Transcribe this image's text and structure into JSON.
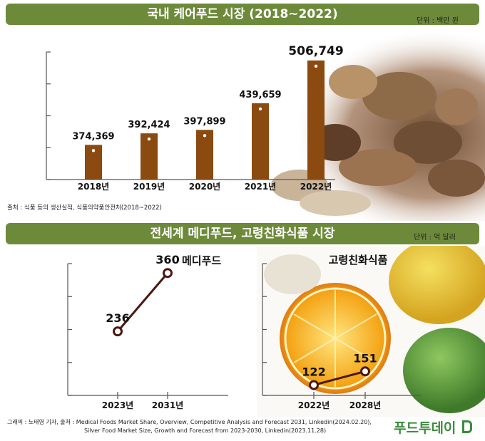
{
  "top_chart": {
    "title": "국내 케어푸드 시장 (2018~2022)",
    "unit": "단위 : 백만 원",
    "source": "출처 : 식품 등의 생산실적, 식품의약품안전처(2018~2022)"
  },
  "bottom_chart": {
    "title": "전세계 메디푸드, 고령친화식품 시장",
    "unit": "단위 : 억 달러",
    "source_line1": "그래픽 : 노태영 기자, 출처 : Medical Foods Market Share, Overview, Competitive Analysis and Forecast 2031, Linkedin(2024.02.20),",
    "source_line2": "Silver Food Market Size, Growth and Forecast from 2023-2030, Linkedin(2023.11.28)"
  },
  "logo": "푸드투데이",
  "colors": {
    "banner": "#6d8a3a",
    "bar": "#8a4a10",
    "line": "#4a1810",
    "axis": "#555555"
  },
  "chart_data": [
    {
      "type": "bar",
      "title": "국내 케어푸드 시장 (2018~2022)",
      "categories": [
        "2018년",
        "2019년",
        "2020년",
        "2021년",
        "2022년"
      ],
      "values": [
        374369,
        392424,
        397899,
        439659,
        506749
      ],
      "value_labels": [
        "374,369",
        "392,424",
        "397,899",
        "439,659",
        "506,749"
      ],
      "ylabel": "",
      "ylim": [
        320000,
        520000
      ],
      "grid": false
    },
    {
      "type": "line",
      "series": [
        {
          "name": "메디푸드",
          "values": [
            236,
            360
          ],
          "value_labels": [
            "236",
            "360"
          ]
        }
      ],
      "categories": [
        "2023년",
        "2031년"
      ],
      "ylim": [
        100,
        380
      ]
    },
    {
      "type": "line",
      "series": [
        {
          "name": "고령친화식품",
          "values": [
            122,
            151
          ],
          "value_labels": [
            "122",
            "151"
          ]
        }
      ],
      "categories": [
        "2022년",
        "2028년"
      ],
      "ylim": [
        100,
        380
      ]
    }
  ]
}
